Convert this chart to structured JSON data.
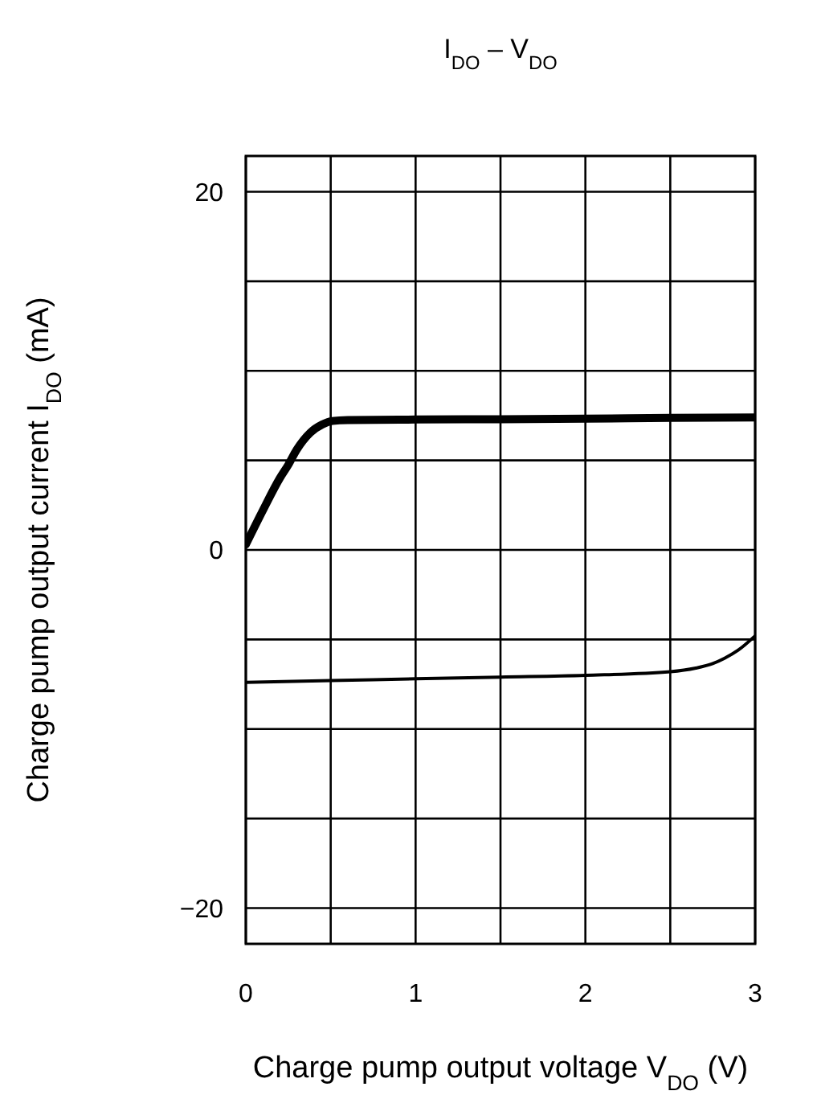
{
  "chart_data": {
    "type": "line",
    "title": "I$_{DO}$ – V$_{DO}$",
    "xlabel": "Charge pump output voltage V$_{DO}$ (V)",
    "ylabel": "Charge pump output current I$_{DO}$ (mA)",
    "xlim": [
      0,
      3
    ],
    "ylim": [
      -22,
      22
    ],
    "xticks": [
      0,
      {
        "value": 0.5,
        "label": null
      },
      1,
      {
        "value": 1.5,
        "label": null
      },
      2,
      {
        "value": 2.5,
        "label": null
      },
      3
    ],
    "yticks": [
      -20,
      {
        "value": -15,
        "label": null
      },
      {
        "value": -10,
        "label": null
      },
      {
        "value": -5,
        "label": null
      },
      0,
      {
        "value": 5,
        "label": null
      },
      {
        "value": 10,
        "label": null
      },
      {
        "value": 15,
        "label": null
      },
      20
    ],
    "grid": true,
    "line_style": "solid",
    "series": [
      {
        "color": "#000000",
        "x": [
          0,
          0.1,
          0.2,
          0.25,
          0.3,
          0.38,
          0.45,
          0.51,
          0.6,
          1,
          1.5,
          2,
          2.5,
          3
        ],
        "values": [
          0.3,
          2.2,
          4.0,
          4.75,
          5.6,
          6.55,
          7.0,
          7.2,
          7.25,
          7.28,
          7.3,
          7.33,
          7.37,
          7.4
        ]
      },
      {
        "color": "#000000",
        "x": [
          0,
          0.5,
          1,
          1.5,
          2,
          2.5,
          2.65,
          2.75,
          2.82,
          2.9,
          3
        ],
        "values": [
          -7.4,
          -7.3,
          -7.2,
          -7.1,
          -7.0,
          -6.8,
          -6.6,
          -6.35,
          -6.05,
          -5.6,
          -4.8
        ]
      }
    ]
  }
}
